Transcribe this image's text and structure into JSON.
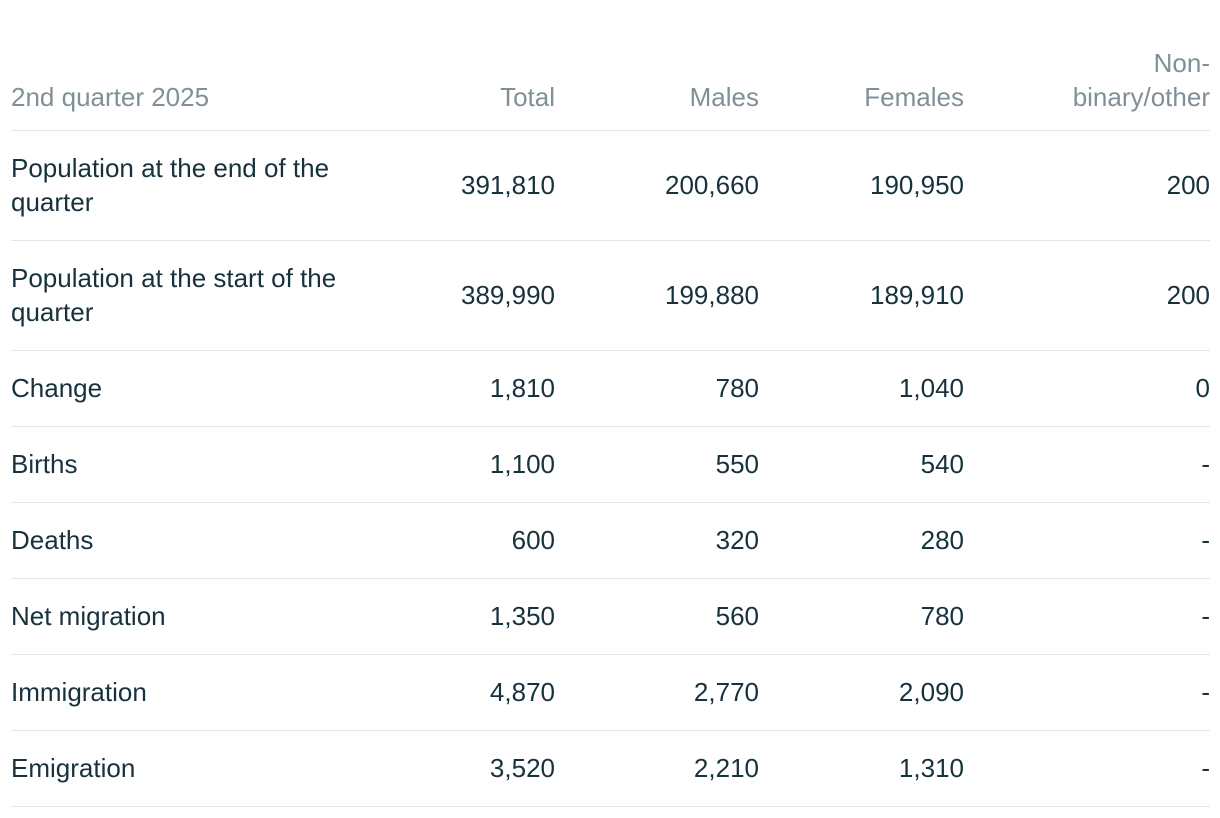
{
  "table": {
    "headers": {
      "period": "2nd quarter 2025",
      "total": "Total",
      "males": "Males",
      "females": "Females",
      "nonbinary_line1": "Non-",
      "nonbinary_line2": "binary/other"
    },
    "rows": [
      {
        "label": "Population at the end of the quarter",
        "total": "391,810",
        "males": "200,660",
        "females": "190,950",
        "nonbinary": "200"
      },
      {
        "label": "Population at the start of the quarter",
        "total": "389,990",
        "males": "199,880",
        "females": "189,910",
        "nonbinary": "200"
      },
      {
        "label": "Change",
        "total": "1,810",
        "males": "780",
        "females": "1,040",
        "nonbinary": "0"
      },
      {
        "label": "Births",
        "total": "1,100",
        "males": "550",
        "females": "540",
        "nonbinary": "-"
      },
      {
        "label": "Deaths",
        "total": "600",
        "males": "320",
        "females": "280",
        "nonbinary": "-"
      },
      {
        "label": "Net migration",
        "total": "1,350",
        "males": "560",
        "females": "780",
        "nonbinary": "-"
      },
      {
        "label": "Immigration",
        "total": "4,870",
        "males": "2,770",
        "females": "2,090",
        "nonbinary": "-"
      },
      {
        "label": "Emigration",
        "total": "3,520",
        "males": "2,210",
        "females": "1,310",
        "nonbinary": "-"
      }
    ]
  }
}
